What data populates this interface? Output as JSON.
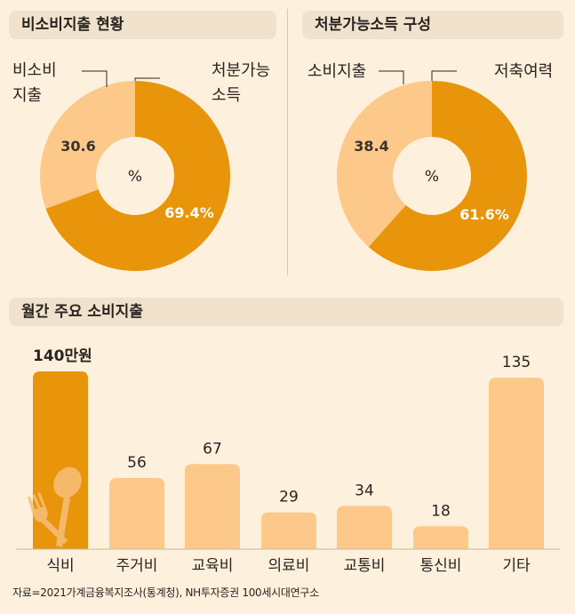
{
  "colors": {
    "dark": "#e8950b",
    "light": "#fcc98a",
    "background": "#fdf1dd",
    "pill": "#f0e2cd",
    "text": "#2a2420"
  },
  "titles": {
    "consumption_status": "비소비지출 현황",
    "disposable_income": "처분가능소득 구성",
    "monthly_spending": "월간 주요 소비지출"
  },
  "chart_data": [
    {
      "type": "pie",
      "title": "비소비지출 현황",
      "unit": "%",
      "center_label": "%",
      "slices": [
        {
          "label_line1": "처분가능",
          "label_line2": "소득",
          "value": 69.4,
          "value_label": "69.4%"
        },
        {
          "label_line1": "비소비",
          "label_line2": "지출",
          "value": 30.6,
          "value_label": "30.6"
        }
      ]
    },
    {
      "type": "pie",
      "title": "처분가능소득 구성",
      "unit": "%",
      "center_label": "%",
      "slices": [
        {
          "label_line1": "저축여력",
          "label_line2": "",
          "value": 61.6,
          "value_label": "61.6%"
        },
        {
          "label_line1": "소비지출",
          "label_line2": "",
          "value": 38.4,
          "value_label": "38.4"
        }
      ]
    },
    {
      "type": "bar",
      "title": "월간 주요 소비지출",
      "unit": "만원",
      "categories": [
        "식비",
        "주거비",
        "교육비",
        "의료비",
        "교통비",
        "통신비",
        "기타"
      ],
      "values": [
        140,
        56,
        67,
        29,
        34,
        18,
        135
      ],
      "value_labels": [
        "140만원",
        "56",
        "67",
        "29",
        "34",
        "18",
        "135"
      ],
      "highlight_index": 0,
      "ylim": [
        0,
        140
      ]
    }
  ],
  "source": "자료=2021가계금융복지조사(통계청), NH투자증권 100세시대연구소"
}
